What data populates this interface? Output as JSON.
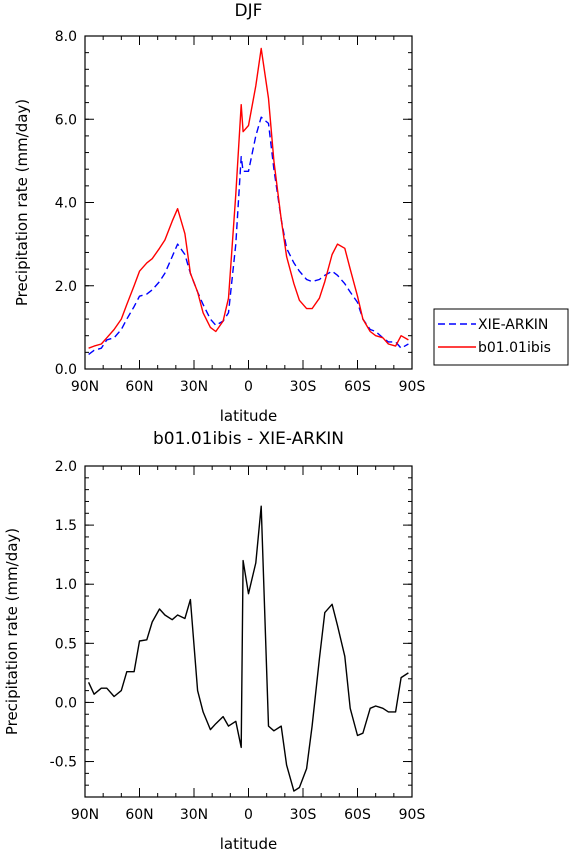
{
  "chart_data": [
    {
      "type": "line",
      "title": "DJF",
      "xlabel": "latitude",
      "ylabel": "Precipitation rate (mm/day)",
      "xlim": [
        -90,
        90
      ],
      "ylim": [
        0,
        8
      ],
      "x_ticks": [
        {
          "value": -90,
          "label": "90N"
        },
        {
          "value": -60,
          "label": "60N"
        },
        {
          "value": -30,
          "label": "30N"
        },
        {
          "value": 0,
          "label": "0"
        },
        {
          "value": 30,
          "label": "30S"
        },
        {
          "value": 60,
          "label": "60S"
        },
        {
          "value": 90,
          "label": "90S"
        }
      ],
      "y_ticks": [
        {
          "value": 0,
          "label": "0.0"
        },
        {
          "value": 2,
          "label": "2.0"
        },
        {
          "value": 4,
          "label": "4.0"
        },
        {
          "value": 6,
          "label": "6.0"
        },
        {
          "value": 8,
          "label": "8.0"
        }
      ],
      "legend": {
        "position": "right"
      },
      "series": [
        {
          "name": "XIE-ARKIN",
          "color": "#0000ff",
          "dash": "dashed",
          "x": [
            -88,
            -85,
            -81,
            -78,
            -74,
            -70,
            -67,
            -63,
            -60,
            -56,
            -53,
            -49,
            -46,
            -42,
            -39,
            -35,
            -32,
            -28,
            -25,
            -21,
            -18,
            -14,
            -11,
            -7,
            -4,
            -3,
            0,
            4,
            7,
            11,
            14,
            18,
            21,
            25,
            28,
            32,
            35,
            39,
            42,
            46,
            49,
            53,
            56,
            60,
            63,
            67,
            70,
            74,
            77,
            81,
            84,
            88
          ],
          "y": [
            0.35,
            0.45,
            0.5,
            0.7,
            0.75,
            0.95,
            1.2,
            1.5,
            1.75,
            1.8,
            1.9,
            2.1,
            2.3,
            2.7,
            3.0,
            2.75,
            2.3,
            1.85,
            1.55,
            1.2,
            1.05,
            1.15,
            1.35,
            3.0,
            5.1,
            4.75,
            4.75,
            5.6,
            6.05,
            5.9,
            4.8,
            3.6,
            2.9,
            2.55,
            2.35,
            2.15,
            2.1,
            2.15,
            2.25,
            2.35,
            2.25,
            2.05,
            1.85,
            1.6,
            1.2,
            0.95,
            0.9,
            0.75,
            0.65,
            0.65,
            0.5,
            0.6
          ]
        },
        {
          "name": "b01.01ibis",
          "color": "#ff0000",
          "dash": "solid",
          "x": [
            -88,
            -85,
            -81,
            -78,
            -74,
            -70,
            -67,
            -63,
            -60,
            -56,
            -53,
            -49,
            -46,
            -42,
            -39,
            -35,
            -32,
            -28,
            -25,
            -21,
            -18,
            -14,
            -11,
            -7,
            -4,
            -3,
            0,
            4,
            7,
            11,
            14,
            18,
            21,
            25,
            28,
            32,
            35,
            39,
            42,
            46,
            49,
            53,
            56,
            60,
            63,
            67,
            70,
            74,
            77,
            81,
            84,
            88
          ],
          "y": [
            0.5,
            0.55,
            0.6,
            0.75,
            0.95,
            1.2,
            1.55,
            2.0,
            2.35,
            2.55,
            2.65,
            2.9,
            3.1,
            3.55,
            3.85,
            3.25,
            2.3,
            1.85,
            1.35,
            1.0,
            0.9,
            1.15,
            1.7,
            4.2,
            6.35,
            5.7,
            5.85,
            6.8,
            7.7,
            6.5,
            5.0,
            3.6,
            2.7,
            2.05,
            1.65,
            1.45,
            1.45,
            1.7,
            2.1,
            2.75,
            3.0,
            2.9,
            2.4,
            1.75,
            1.2,
            0.9,
            0.8,
            0.75,
            0.6,
            0.55,
            0.8,
            0.7
          ]
        }
      ]
    },
    {
      "type": "line",
      "title": "b01.01ibis - XIE-ARKIN",
      "xlabel": "latitude",
      "ylabel": "Precipitation rate (mm/day)",
      "xlim": [
        -90,
        90
      ],
      "ylim": [
        -0.8,
        2.0
      ],
      "x_ticks": [
        {
          "value": -90,
          "label": "90N"
        },
        {
          "value": -60,
          "label": "60N"
        },
        {
          "value": -30,
          "label": "30N"
        },
        {
          "value": 0,
          "label": "0"
        },
        {
          "value": 30,
          "label": "30S"
        },
        {
          "value": 60,
          "label": "60S"
        },
        {
          "value": 90,
          "label": "90S"
        }
      ],
      "y_ticks": [
        {
          "value": -0.5,
          "label": "-0.5"
        },
        {
          "value": 0.0,
          "label": "0.0"
        },
        {
          "value": 0.5,
          "label": "0.5"
        },
        {
          "value": 1.0,
          "label": "1.0"
        },
        {
          "value": 1.5,
          "label": "1.5"
        },
        {
          "value": 2.0,
          "label": "2.0"
        }
      ],
      "series": [
        {
          "color": "#000000",
          "dash": "solid",
          "x": [
            -88,
            -85,
            -81,
            -78,
            -74,
            -70,
            -67,
            -63,
            -60,
            -56,
            -53,
            -49,
            -46,
            -42,
            -39,
            -35,
            -32,
            -28,
            -25,
            -21,
            -18,
            -14,
            -11,
            -7,
            -4,
            -3,
            0,
            4,
            7,
            11,
            14,
            18,
            21,
            25,
            28,
            32,
            35,
            39,
            42,
            46,
            49,
            53,
            56,
            60,
            63,
            67,
            70,
            74,
            77,
            81,
            84,
            88
          ],
          "y": [
            0.17,
            0.07,
            0.12,
            0.12,
            0.05,
            0.1,
            0.26,
            0.26,
            0.52,
            0.53,
            0.68,
            0.79,
            0.74,
            0.7,
            0.74,
            0.71,
            0.87,
            0.1,
            -0.08,
            -0.23,
            -0.18,
            -0.12,
            -0.2,
            -0.16,
            -0.38,
            1.2,
            0.92,
            1.18,
            1.66,
            -0.2,
            -0.24,
            -0.2,
            -0.53,
            -0.75,
            -0.72,
            -0.56,
            -0.2,
            0.37,
            0.76,
            0.83,
            0.65,
            0.39,
            -0.05,
            -0.28,
            -0.26,
            -0.05,
            -0.03,
            -0.05,
            -0.08,
            -0.08,
            0.21,
            0.25
          ]
        }
      ]
    }
  ]
}
